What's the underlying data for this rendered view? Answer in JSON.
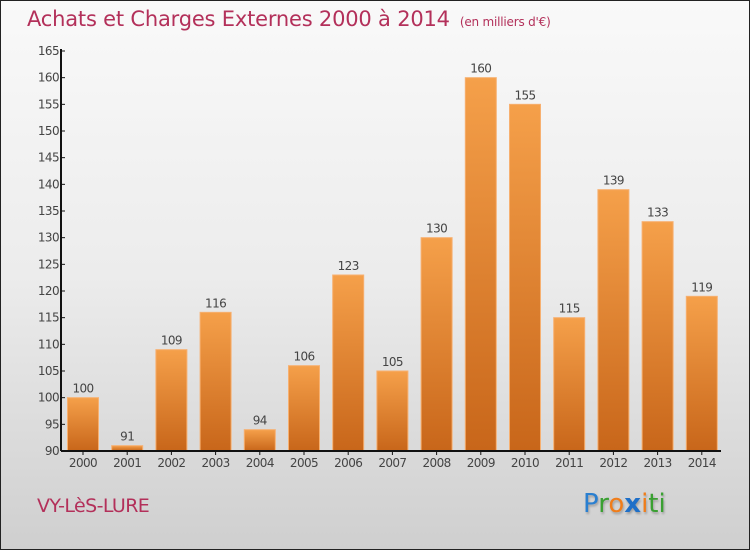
{
  "chart_data": {
    "type": "bar",
    "title": "Achats et Charges Externes 2000 à 2014",
    "subtitle": "(en milliers d'€)",
    "xlabel": "",
    "ylabel": "",
    "categories": [
      "2000",
      "2001",
      "2002",
      "2003",
      "2004",
      "2005",
      "2006",
      "2007",
      "2008",
      "2009",
      "2010",
      "2011",
      "2012",
      "2013",
      "2014"
    ],
    "values": [
      100,
      91,
      109,
      116,
      94,
      106,
      123,
      105,
      130,
      160,
      155,
      115,
      139,
      133,
      119
    ],
    "ylim": [
      90,
      165
    ],
    "yticks": [
      90,
      95,
      100,
      105,
      110,
      115,
      120,
      125,
      130,
      135,
      140,
      145,
      150,
      155,
      160,
      165
    ],
    "grid": false,
    "bar_color_top": "#f5a04a",
    "bar_color_bottom": "#c8661a"
  },
  "footer": {
    "town": "VY-LèS-LURE",
    "logo": [
      {
        "ch": "P",
        "color": "#2a7fd0"
      },
      {
        "ch": "r",
        "color": "#3aa032"
      },
      {
        "ch": "o",
        "color": "#f07d1a"
      },
      {
        "ch": "x",
        "color": "#1e6fc8"
      },
      {
        "ch": "i",
        "color": "#f07d1a"
      },
      {
        "ch": "t",
        "color": "#3aa032"
      },
      {
        "ch": "i",
        "color": "#3aa032"
      }
    ]
  }
}
